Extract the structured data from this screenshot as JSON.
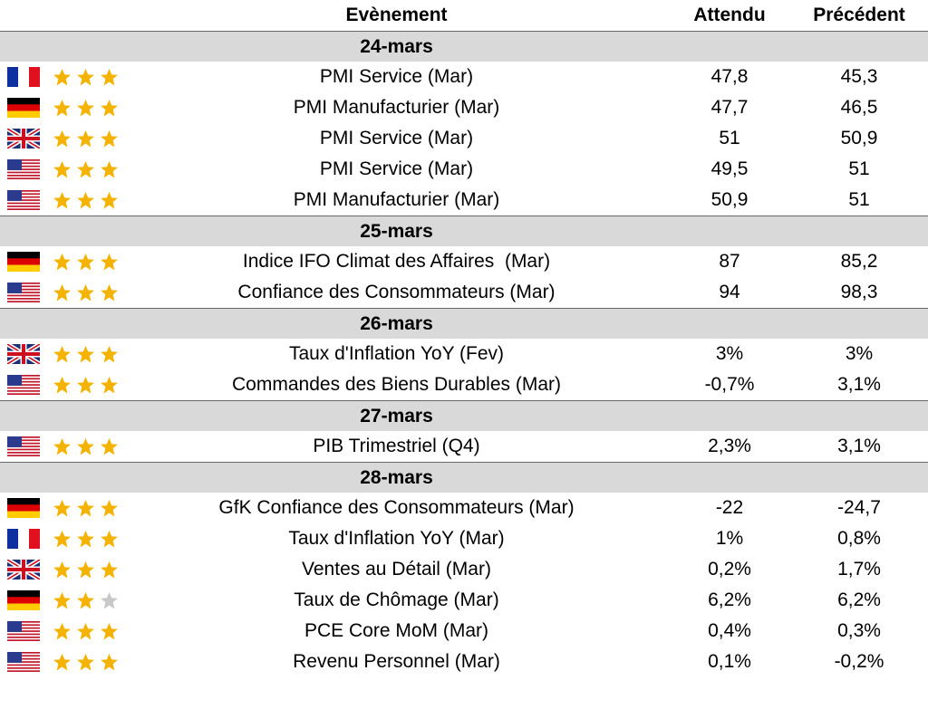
{
  "header": {
    "event": "Evènement",
    "expected": "Attendu",
    "previous": "Précédent"
  },
  "sections": [
    {
      "date": "24-mars",
      "rows": [
        {
          "event": "PMI Service (Mar)",
          "expected": "47,8",
          "previous": "45,3",
          "stars": 3
        },
        {
          "event": "PMI Manufacturier (Mar)",
          "expected": "47,7",
          "previous": "46,5",
          "stars": 3
        },
        {
          "event": "PMI Service (Mar)",
          "expected": "51",
          "previous": "50,9",
          "stars": 3
        },
        {
          "event": "PMI Service (Mar)",
          "expected": "49,5",
          "previous": "51",
          "stars": 3
        },
        {
          "event": "PMI Manufacturier (Mar)",
          "expected": "50,9",
          "previous": "51",
          "stars": 3
        }
      ]
    },
    {
      "date": "25-mars",
      "rows": [
        {
          "event": "Indice IFO Climat des Affaires  (Mar)",
          "expected": "87",
          "previous": "85,2",
          "stars": 3
        },
        {
          "event": "Confiance des Consommateurs (Mar)",
          "expected": "94",
          "previous": "98,3",
          "stars": 3
        }
      ]
    },
    {
      "date": "26-mars",
      "rows": [
        {
          "event": "Taux d'Inflation YoY (Fev)",
          "expected": "3%",
          "previous": "3%",
          "stars": 3
        },
        {
          "event": "Commandes des Biens Durables (Mar)",
          "expected": "-0,7%",
          "previous": "3,1%",
          "stars": 3
        }
      ]
    },
    {
      "date": "27-mars",
      "rows": [
        {
          "event": "PIB Trimestriel (Q4)",
          "expected": "2,3%",
          "previous": "3,1%",
          "stars": 3
        }
      ]
    },
    {
      "date": "28-mars",
      "rows": [
        {
          "event": "GfK Confiance des Consommateurs (Mar)",
          "expected": "-22",
          "previous": "-24,7",
          "stars": 3
        },
        {
          "event": "Taux d'Inflation YoY (Mar)",
          "expected": "1%",
          "previous": "0,8%",
          "stars": 3
        },
        {
          "event": "Ventes au Détail (Mar)",
          "expected": "0,2%",
          "previous": "1,7%",
          "stars": 3
        },
        {
          "event": "Taux de Chômage (Mar)",
          "expected": "6,2%",
          "previous": "6,2%",
          "stars": 2
        },
        {
          "event": "PCE Core MoM (Mar)",
          "expected": "0,4%",
          "previous": "0,3%",
          "stars": 3
        },
        {
          "event": "Revenu Personnel (Mar)",
          "expected": "0,1%",
          "previous": "-0,2%",
          "stars": 3
        }
      ]
    }
  ]
}
